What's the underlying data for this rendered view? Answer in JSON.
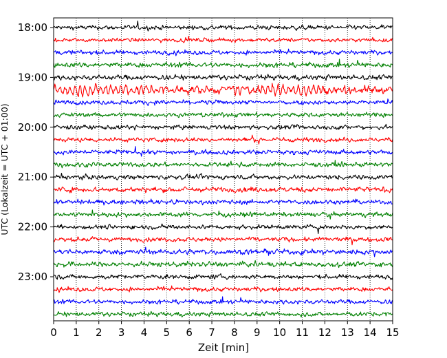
{
  "chart_data": {
    "type": "line",
    "title": "",
    "xlabel": "Zeit  [min]",
    "ylabel": "UTC (Lokalzeit = UTC + 01:00)",
    "xlim": [
      0,
      15
    ],
    "xticks": [
      "0",
      "1",
      "2",
      "3",
      "4",
      "5",
      "6",
      "7",
      "8",
      "9",
      "10",
      "11",
      "12",
      "13",
      "14",
      "15"
    ],
    "yticks": [
      "18:00",
      "19:00",
      "20:00",
      "21:00",
      "22:00",
      "23:00"
    ],
    "grid": "vertical dotted at each minute",
    "trace_interval_minutes": 15,
    "trace_start": "18:00",
    "trace_count": 24,
    "trace_colors": [
      "#000000",
      "#ff0000",
      "#0000ff",
      "#008000"
    ],
    "trace_amplitude": [
      0.35,
      0.3,
      0.35,
      0.4,
      0.4,
      0.55,
      0.35,
      0.35,
      0.35,
      0.35,
      0.35,
      0.35,
      0.35,
      0.4,
      0.35,
      0.35,
      0.35,
      0.35,
      0.4,
      0.4,
      0.35,
      0.35,
      0.35,
      0.35
    ]
  }
}
